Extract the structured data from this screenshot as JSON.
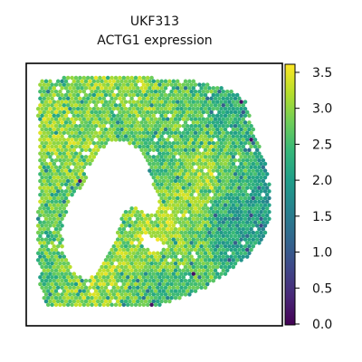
{
  "figure": {
    "title": "UKF313",
    "subtitle": "ACTG1 expression"
  },
  "chart_data": {
    "type": "scatter",
    "title": "UKF313",
    "subtitle": "ACTG1 expression",
    "xlabel": "",
    "ylabel": "",
    "grid": false,
    "colormap": "viridis",
    "color_range": [
      0.0,
      3.6
    ],
    "colorbar": {
      "location": "right",
      "ticks": [
        0.0,
        0.5,
        1.0,
        1.5,
        2.0,
        2.5,
        3.0,
        3.5
      ],
      "tick_labels": [
        "0.0",
        "0.5",
        "1.0",
        "1.5",
        "2.0",
        "2.5",
        "3.0",
        "3.5"
      ]
    },
    "viridis_stops": [
      "#440154",
      "#482878",
      "#3e4989",
      "#31688e",
      "#26828e",
      "#1f9e89",
      "#35b779",
      "#6ece58",
      "#b5de2b",
      "#fde725"
    ],
    "notes": "spatial spots; most expression values between about 2.2 and 3.4 with a few outliers near 0"
  }
}
